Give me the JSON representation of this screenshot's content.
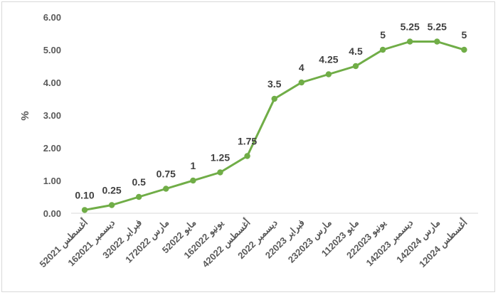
{
  "chart_data": {
    "type": "line",
    "ylabel": "%",
    "ylim": [
      0,
      6
    ],
    "yticks": [
      "0.00",
      "1.00",
      "2.00",
      "3.00",
      "4.00",
      "5.00",
      "6.00"
    ],
    "grid": false,
    "categories": [
      "5أغسطس 2021",
      "16ديسمبر 2021",
      "3فبراير 2022",
      "17مارس 2022",
      "5مايو 2022",
      "16يونيو 2022",
      "4أغسطس 2022",
      "ديسمبر 2022",
      "2فبراير 2023",
      "23مارس 2023",
      "11مايو 2023",
      "22يونيو 2023",
      "14ديسمبر 2023",
      "14مارس 2024",
      "1أغسطس 2024"
    ],
    "series": [
      {
        "values": [
          0.1,
          0.25,
          0.5,
          0.75,
          1,
          1.25,
          1.75,
          3.5,
          4,
          4.25,
          4.5,
          5,
          5.25,
          5.25,
          5
        ],
        "labels": [
          "0.10",
          "0.25",
          "0.5",
          "0.75",
          "1",
          "1.25",
          "1.75",
          "3.5",
          "4",
          "4.25",
          "4.5",
          "5",
          "5.25",
          "5.25",
          "5"
        ],
        "color": "#70ad47"
      }
    ],
    "colors": {
      "axis": "#d9d9d9",
      "text": "#595959",
      "label": "#404040"
    }
  }
}
